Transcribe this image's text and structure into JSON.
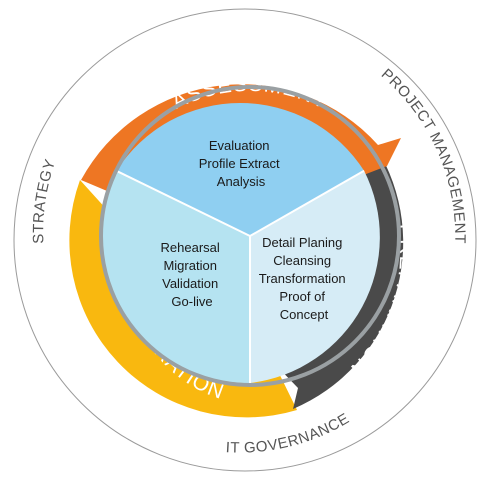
{
  "outer_ring": {
    "labels": {
      "strategy": "STRATEGY",
      "project_management": "PROJECT MANAGEMENT",
      "it_governance": "IT GOVERNANCE"
    },
    "stroke": "#9a9a9a"
  },
  "phases": {
    "assessment": {
      "label": "ASSESSMENT",
      "color": "#ee7623"
    },
    "preparation": {
      "label": "PREPARATION",
      "color": "#4a4a4a"
    },
    "migration": {
      "label": "MIGRATION",
      "color": "#f9b80f"
    }
  },
  "segments": {
    "top": {
      "color": "#8fcff1",
      "lines": [
        "Evaluation",
        "Profile Extract",
        "Analysis"
      ]
    },
    "left": {
      "color": "#b5e3f1",
      "lines": [
        "Rehearsal",
        "Migration",
        "Validation",
        "Go-live"
      ]
    },
    "right": {
      "color": "#d6ecf6",
      "lines": [
        "Detail Planing",
        "Cleansing",
        "Transformation",
        "Proof of",
        "Concept"
      ]
    }
  }
}
